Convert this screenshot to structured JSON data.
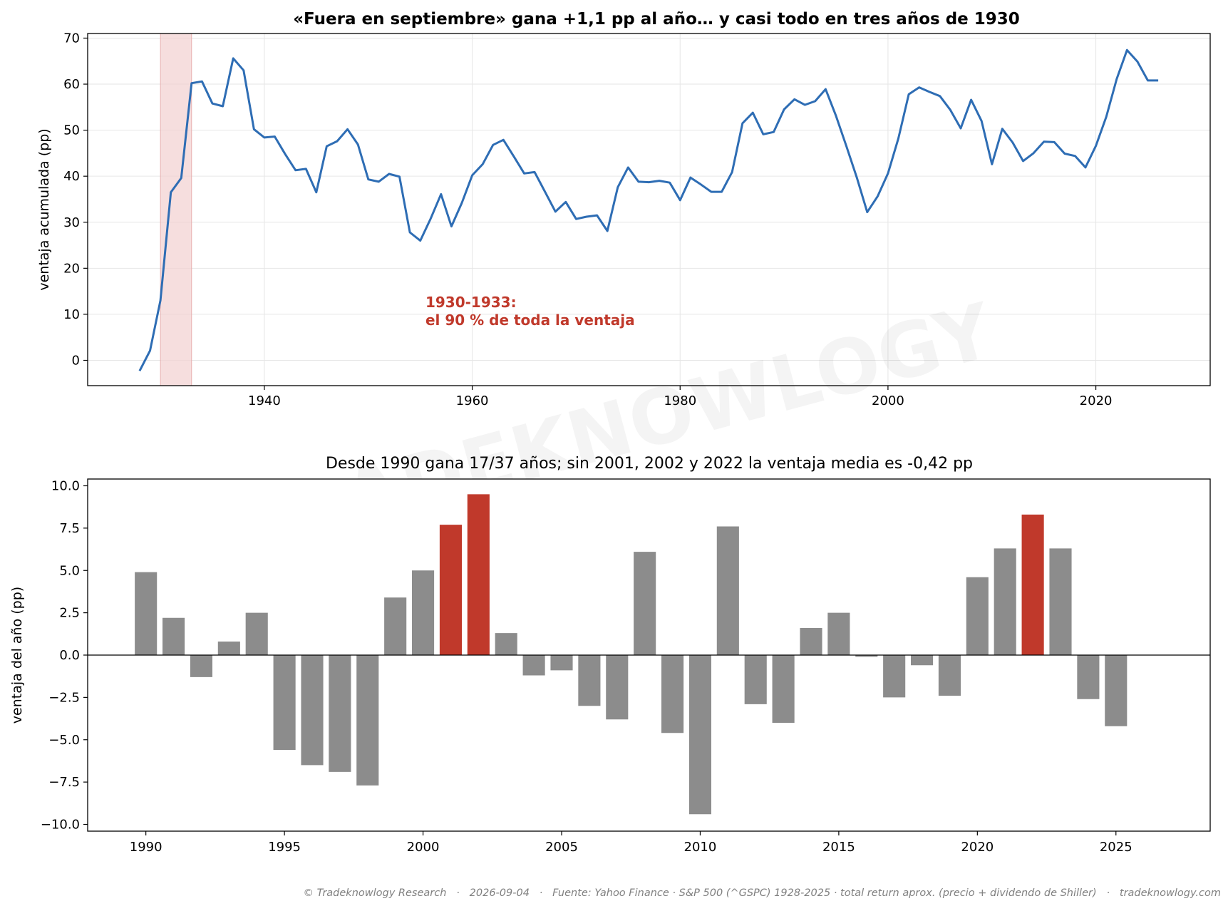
{
  "watermark": "TRADEKNOWLOGY",
  "footer": "© Tradeknowlogy Research   ·   2026-09-04   ·   Fuente: Yahoo Finance · S&P 500 (^GSPC) 1928-2025 · total return aprox. (precio + dividendo de Shiller)   ·   tradeknowlogy.com",
  "colors": {
    "line": "#2e6db4",
    "bar": "#8c8c8c",
    "highlight": "#c0392b",
    "band": "#f2d0d0",
    "annotation": "#c0392b"
  },
  "chart_data": [
    {
      "type": "line",
      "title": "«Fuera en septiembre» gana +1,1 pp al año… y casi todo en tres años de 1930",
      "xlabel": "",
      "ylabel": "ventaja acumulada (pp)",
      "xlim": [
        1923,
        2031
      ],
      "ylim": [
        -5.5,
        71
      ],
      "grid": true,
      "xticks": [
        1940,
        1960,
        1980,
        2000,
        2020
      ],
      "yticks": [
        0,
        10,
        20,
        30,
        40,
        50,
        60,
        70
      ],
      "highlight_band": [
        1930,
        1933
      ],
      "annotation": {
        "lines": [
          "1930-1933:",
          "el 90 % de toda la ventaja"
        ],
        "x": 1955.5,
        "y": 11.5
      },
      "x": [
        1928,
        1929,
        1930,
        1931,
        1932,
        1933,
        1934,
        1935,
        1936,
        1937,
        1938,
        1939,
        1940,
        1941,
        1942,
        1943,
        1944,
        1945,
        1946,
        1947,
        1948,
        1949,
        1950,
        1951,
        1952,
        1953,
        1954,
        1955,
        1956,
        1957,
        1958,
        1959,
        1960,
        1961,
        1962,
        1963,
        1964,
        1965,
        1966,
        1967,
        1968,
        1969,
        1970,
        1971,
        1972,
        1973,
        1974,
        1975,
        1976,
        1977,
        1978,
        1979,
        1980,
        1981,
        1982,
        1983,
        1984,
        1985,
        1986,
        1987,
        1988,
        1989,
        1990,
        1991,
        1992,
        1993,
        1994,
        1995,
        1996,
        1997,
        1998,
        1999,
        2000,
        2001,
        2002,
        2003,
        2004,
        2005,
        2006,
        2007,
        2008,
        2009,
        2010,
        2011,
        2012,
        2013,
        2014,
        2015,
        2016,
        2017,
        2018,
        2019,
        2020,
        2021,
        2022,
        2023,
        2024,
        2025,
        2026
      ],
      "series": [
        {
          "values": [
            -2.3,
            2.1,
            13.0,
            36.5,
            39.6,
            60.2,
            60.6,
            55.8,
            55.2,
            65.6,
            63.0,
            50.2,
            48.4,
            48.6,
            44.8,
            41.3,
            41.6,
            36.5,
            46.5,
            47.6,
            50.2,
            46.9,
            39.3,
            38.8,
            40.5,
            39.9,
            27.8,
            26.0,
            30.8,
            36.1,
            29.1,
            34.2,
            40.2,
            42.6,
            46.8,
            47.9,
            44.3,
            40.6,
            40.9,
            36.6,
            32.3,
            34.4,
            30.7,
            31.2,
            31.5,
            28.1,
            37.6,
            41.9,
            38.8,
            38.7,
            39.0,
            38.6,
            34.8,
            39.7,
            38.2,
            36.6,
            36.6,
            40.9,
            51.5,
            53.8,
            49.1,
            49.6,
            54.5,
            56.7,
            55.5,
            56.3,
            58.9,
            53.1,
            46.5,
            39.7,
            32.2,
            35.6,
            40.6,
            48.2,
            57.8,
            59.3,
            58.3,
            57.4,
            54.4,
            50.4,
            56.6,
            52.0,
            42.6,
            50.3,
            47.3,
            43.3,
            45.0,
            47.5,
            47.4,
            44.9,
            44.4,
            41.9,
            46.6,
            52.9,
            61.1,
            67.4,
            64.9,
            60.8,
            60.8
          ]
        }
      ]
    },
    {
      "type": "bar",
      "title": "Desde 1990 gana 17/37 años; sin 2001, 2002 y 2022 la ventaja media es -0,42 pp",
      "xlabel": "",
      "ylabel": "ventaja del año (pp)",
      "xlim": [
        1987.9,
        2028.4
      ],
      "ylim": [
        -10.4,
        10.4
      ],
      "grid": false,
      "xticks": [
        1990,
        1995,
        2000,
        2005,
        2010,
        2015,
        2020,
        2025
      ],
      "yticks": [
        -10.0,
        -7.5,
        -5.0,
        -2.5,
        0.0,
        2.5,
        5.0,
        7.5,
        10.0
      ],
      "highlighted_years": [
        2001,
        2002,
        2022
      ],
      "categories": [
        1990,
        1991,
        1992,
        1993,
        1994,
        1995,
        1996,
        1997,
        1998,
        1999,
        2000,
        2001,
        2002,
        2003,
        2004,
        2005,
        2006,
        2007,
        2008,
        2009,
        2010,
        2011,
        2012,
        2013,
        2014,
        2015,
        2016,
        2017,
        2018,
        2019,
        2020,
        2021,
        2022,
        2023,
        2024,
        2025
      ],
      "values": [
        4.9,
        2.2,
        -1.3,
        0.8,
        2.5,
        -5.6,
        -6.5,
        -6.9,
        -7.7,
        3.4,
        5.0,
        7.7,
        9.5,
        1.3,
        -1.2,
        -0.9,
        -3.0,
        -3.8,
        6.1,
        -4.6,
        -9.4,
        7.6,
        -2.9,
        -4.0,
        1.6,
        2.5,
        -0.1,
        -2.5,
        -0.6,
        -2.4,
        4.6,
        6.3,
        8.3,
        6.3,
        -2.6,
        -4.2
      ]
    }
  ]
}
